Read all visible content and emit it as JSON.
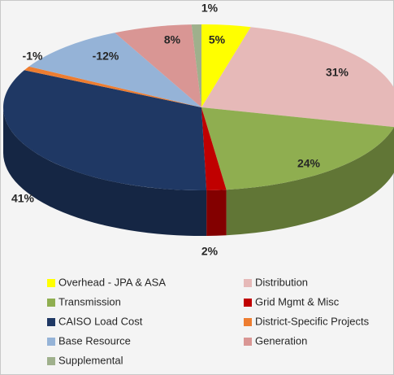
{
  "chart_data": {
    "type": "pie",
    "categories": [
      "Overhead - JPA & ASA",
      "Distribution",
      "Transmission",
      "Grid Mgmt & Misc",
      "CAISO Load Cost",
      "District-Specific Projects",
      "Base Resource",
      "Generation",
      "Supplemental"
    ],
    "values": [
      5,
      31,
      24,
      2,
      41,
      -1,
      -12,
      8,
      1
    ],
    "value_labels": [
      "5%",
      "31%",
      "24%",
      "2%",
      "41%",
      "-1%",
      "-12%",
      "8%",
      "1%"
    ],
    "colors": [
      "#ffff00",
      "#e6b9b8",
      "#8fae50",
      "#c00000",
      "#1f3864",
      "#ed7d31",
      "#95b3d7",
      "#d99694",
      "#9fb08c"
    ],
    "legend": "bottom"
  }
}
